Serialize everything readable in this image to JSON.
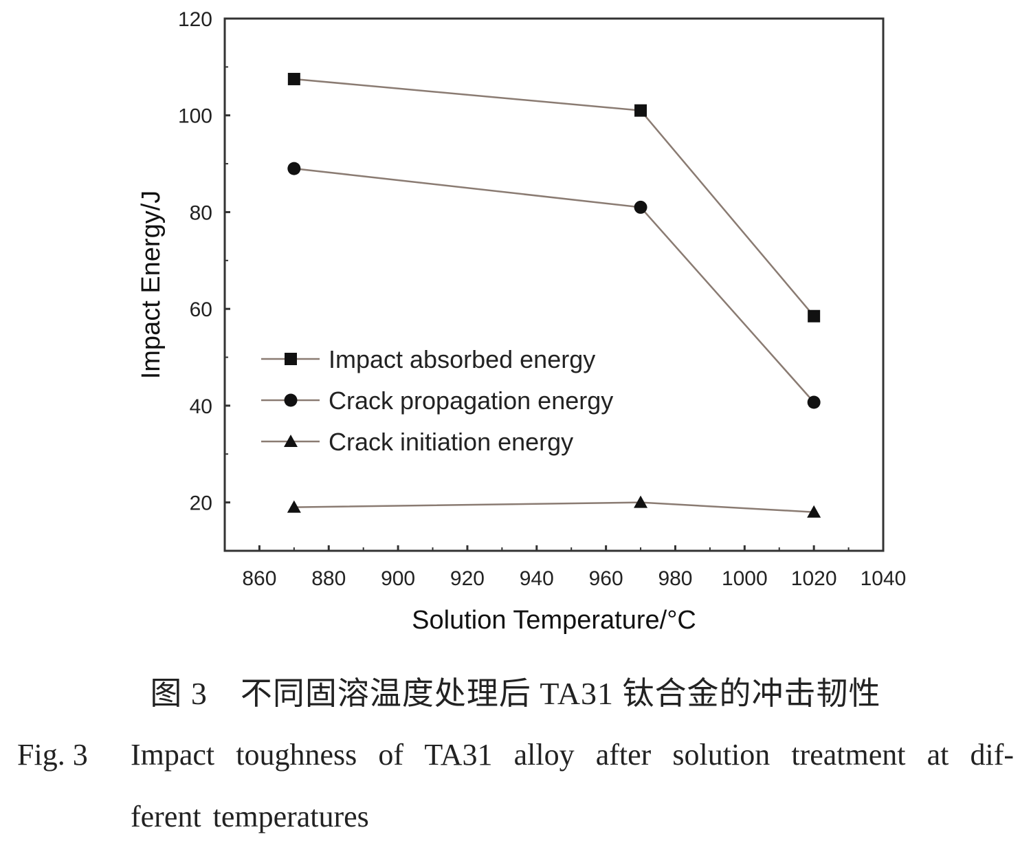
{
  "chart_data": {
    "type": "line",
    "xlabel": "Solution Temperature/°C",
    "ylabel": "Impact Energy/J",
    "xlim": [
      850,
      1040
    ],
    "ylim": [
      10,
      120
    ],
    "xticks": [
      860,
      880,
      900,
      920,
      940,
      960,
      980,
      1000,
      1020,
      1040
    ],
    "yticks": [
      20,
      40,
      60,
      80,
      100,
      120
    ],
    "x": [
      870,
      970,
      1020
    ],
    "grid": false,
    "legend_position": "center-left",
    "line_color": "#8a7b72",
    "marker_color": "#111111",
    "series": [
      {
        "name": "Impact absorbed energy",
        "marker": "square",
        "values": [
          107.5,
          101,
          58.5
        ]
      },
      {
        "name": "Crack propagation energy",
        "marker": "circle",
        "values": [
          89,
          81,
          40.7
        ]
      },
      {
        "name": "Crack initiation energy",
        "marker": "triangle",
        "values": [
          19,
          20,
          18
        ]
      }
    ]
  },
  "caption": {
    "cn_label": "图 3",
    "cn_text": "不同固溶温度处理后 TA31 钛合金的冲击韧性",
    "en_label": "Fig. 3",
    "en_line1": "Impact toughness of TA31 alloy after solution treatment at dif-",
    "en_line2": "ferent temperatures"
  }
}
